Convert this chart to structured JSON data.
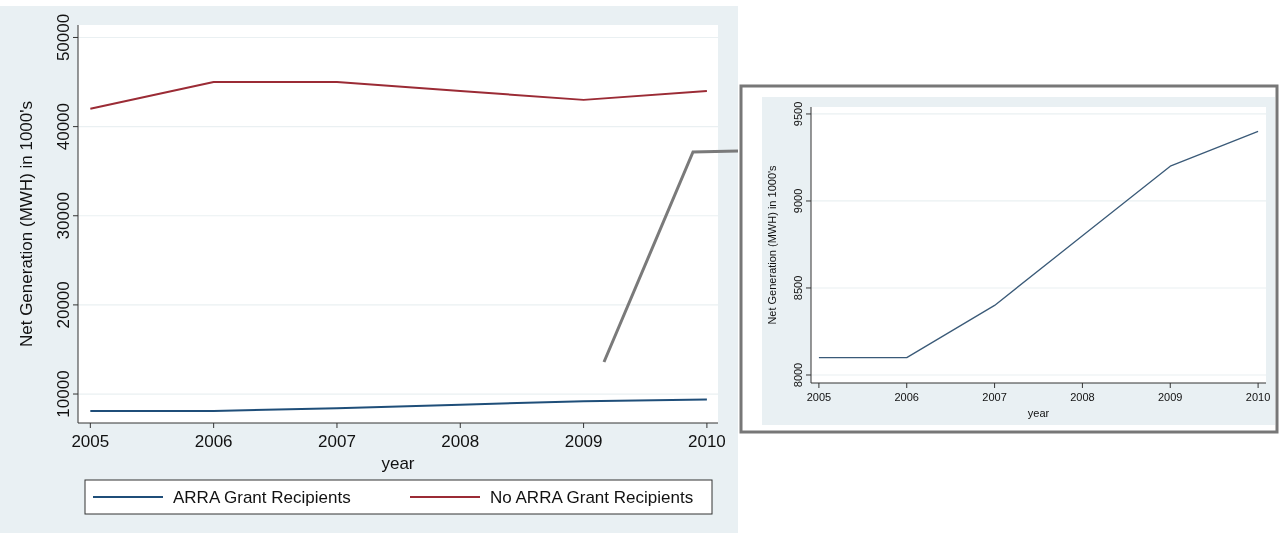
{
  "chart_data": [
    {
      "type": "line",
      "xlabel": "year",
      "ylabel": "Net Generation (MWH) in 1000's",
      "x": [
        2005,
        2006,
        2007,
        2008,
        2009,
        2010
      ],
      "xlim": [
        2004.9,
        2010.09
      ],
      "xticks": [
        2005,
        2006,
        2007,
        2008,
        2009,
        2010
      ],
      "ylim": [
        6750,
        51400
      ],
      "yticks": [
        10000,
        20000,
        30000,
        40000,
        50000
      ],
      "grid": "y",
      "legend": "bottom",
      "series": [
        {
          "name": "ARRA Grant Recipients",
          "color": "#1f4e79",
          "values": [
            8100,
            8100,
            8400,
            8800,
            9200,
            9400
          ]
        },
        {
          "name": "No ARRA Grant Recipients",
          "color": "#9b2b35",
          "values": [
            42000,
            45000,
            45000,
            44000,
            43000,
            44000
          ]
        }
      ]
    },
    {
      "type": "line",
      "xlabel": "year",
      "ylabel": "Net Generation (MWH) in 1000's",
      "x": [
        2005,
        2006,
        2007,
        2008,
        2009,
        2010
      ],
      "xlim": [
        2004.91,
        2010.09
      ],
      "xticks": [
        2005,
        2006,
        2007,
        2008,
        2009,
        2010
      ],
      "ylim": [
        7954,
        9540
      ],
      "yticks": [
        8000,
        8500,
        9000,
        9500
      ],
      "grid": "y",
      "series": [
        {
          "color": "#3a5a78",
          "values": [
            8100,
            8100,
            8400,
            8800,
            9200,
            9400
          ]
        }
      ]
    }
  ]
}
